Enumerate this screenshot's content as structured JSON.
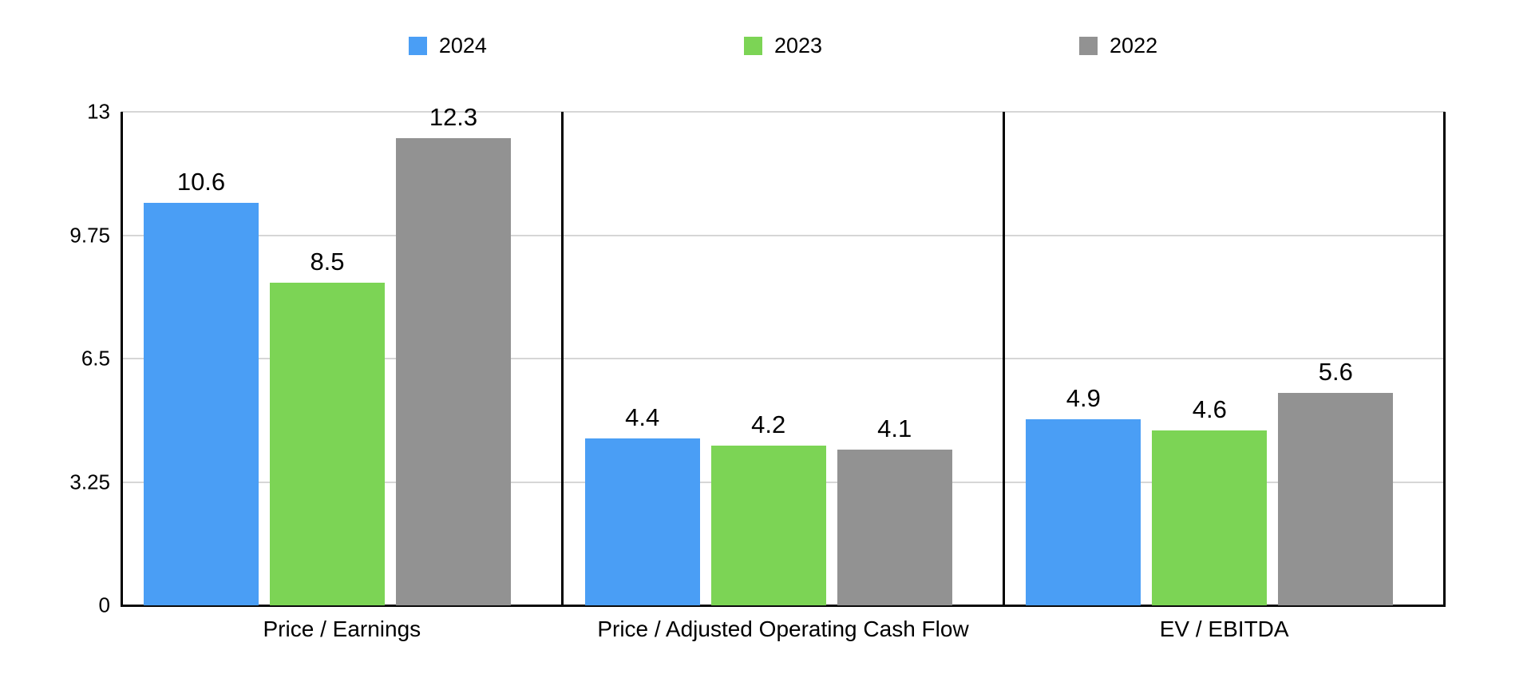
{
  "chart_data": {
    "type": "bar",
    "title": "",
    "categories": [
      "Price / Earnings",
      "Price / Adjusted Operating Cash Flow",
      "EV / EBITDA"
    ],
    "series": [
      {
        "name": "2024",
        "color": "#4A9EF5",
        "values": [
          10.6,
          4.4,
          4.9
        ]
      },
      {
        "name": "2023",
        "color": "#7CD455",
        "values": [
          8.5,
          4.2,
          4.6
        ]
      },
      {
        "name": "2022",
        "color": "#929292",
        "values": [
          12.3,
          4.1,
          5.6
        ]
      }
    ],
    "value_labels": [
      [
        "10.6",
        "4.4",
        "4.9"
      ],
      [
        "8.5",
        "4.2",
        "4.6"
      ],
      [
        "12.3",
        "4.1",
        "5.6"
      ]
    ],
    "ylim": [
      0,
      13
    ],
    "yticks": [
      0,
      3.25,
      6.5,
      9.75,
      13
    ],
    "ytick_labels": [
      "0",
      "3.25",
      "6.5",
      "9.75",
      "13"
    ],
    "grid": "horizontal",
    "legend_position": "top",
    "legend_entries": [
      "2024",
      "2023",
      "2022"
    ],
    "panel_separators": true
  },
  "colors": {
    "background": "#FFFFFF",
    "grid": "#D6D6D6",
    "axis": "#000000",
    "text": "#000000",
    "series_2024": "#4A9EF5",
    "series_2023": "#7CD455",
    "series_2022": "#929292"
  }
}
